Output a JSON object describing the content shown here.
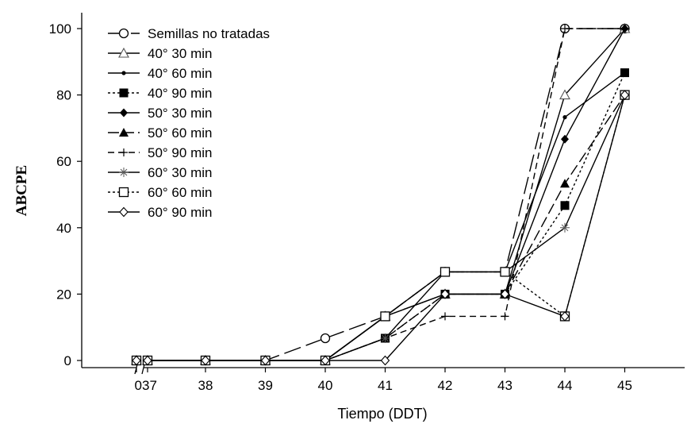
{
  "chart_data": {
    "type": "line",
    "title": "",
    "xlabel": "Tiempo (DDT)",
    "ylabel": "ABCPE",
    "x": [
      0,
      37,
      38,
      39,
      40,
      41,
      42,
      43,
      44,
      45
    ],
    "x_tick_labels": [
      "0",
      "37",
      "38",
      "39",
      "40",
      "41",
      "42",
      "43",
      "44",
      "45"
    ],
    "x_axis_break": "between 0 and 37",
    "y_ticks": [
      0,
      20,
      40,
      60,
      80,
      100
    ],
    "ylim": [
      0,
      100
    ],
    "legend_position": "top-left",
    "series": [
      {
        "name": "Semillas no tratadas",
        "marker": "open-circle",
        "dash": "long-dash",
        "values": [
          0,
          0,
          0,
          0,
          6.7,
          13.3,
          26.7,
          26.7,
          100,
          100
        ]
      },
      {
        "name": "40° 30 min",
        "marker": "open-triangle",
        "dash": "solid",
        "values": [
          0,
          0,
          0,
          0,
          0,
          13.3,
          20,
          20,
          80,
          100
        ]
      },
      {
        "name": "40° 60 min",
        "marker": "small-dot",
        "dash": "solid",
        "values": [
          0,
          0,
          0,
          0,
          0,
          13.3,
          26.7,
          26.7,
          73.3,
          86.7
        ]
      },
      {
        "name": "40° 90 min",
        "marker": "filled-square",
        "dash": "dotted",
        "values": [
          0,
          0,
          0,
          0,
          0,
          6.7,
          20,
          20,
          46.7,
          86.7
        ]
      },
      {
        "name": "50° 30 min",
        "marker": "filled-diamond",
        "dash": "solid",
        "values": [
          0,
          0,
          0,
          0,
          0,
          13.3,
          20,
          20,
          66.7,
          100
        ]
      },
      {
        "name": "50° 60 min",
        "marker": "filled-triangle",
        "dash": "dash",
        "values": [
          0,
          0,
          0,
          0,
          0,
          6.7,
          20,
          20,
          53.3,
          80
        ]
      },
      {
        "name": "50° 90 min",
        "marker": "plus",
        "dash": "short-dash",
        "values": [
          0,
          0,
          0,
          0,
          0,
          6.7,
          13.3,
          13.3,
          100,
          100
        ]
      },
      {
        "name": "60° 30 min",
        "marker": "asterisk",
        "dash": "solid",
        "values": [
          0,
          0,
          0,
          0,
          0,
          6.7,
          26.7,
          26.7,
          40,
          80
        ]
      },
      {
        "name": "60° 60 min",
        "marker": "open-square",
        "dash": "dotted",
        "values": [
          0,
          0,
          0,
          0,
          0,
          13.3,
          26.7,
          26.7,
          13.3,
          80
        ]
      },
      {
        "name": "60° 90 min",
        "marker": "open-diamond",
        "dash": "solid",
        "values": [
          0,
          0,
          0,
          0,
          0,
          0,
          20,
          20,
          13.3,
          80
        ]
      }
    ]
  }
}
